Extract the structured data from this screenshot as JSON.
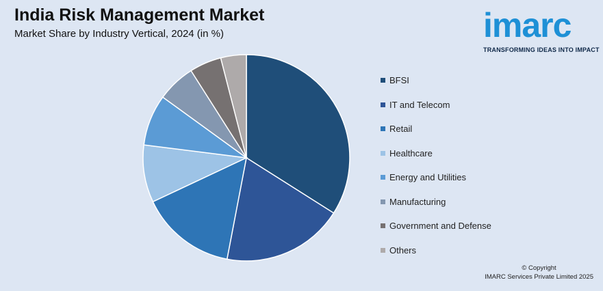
{
  "header": {
    "title": "India Risk Management Market",
    "subtitle": "Market Share by Industry Vertical, 2024 (in %)"
  },
  "logo": {
    "word": "imarc",
    "tagline": "TRANSFORMING IDEAS INTO IMPACT",
    "color": "#1e90d6"
  },
  "chart_data": {
    "type": "pie",
    "title": "India Risk Management Market",
    "subtitle": "Market Share by Industry Vertical, 2024 (in %)",
    "legend_position": "right",
    "categories": [
      "BFSI",
      "IT and Telecom",
      "Retail",
      "Healthcare",
      "Energy and Utilities",
      "Manufacturing",
      "Government and Defense",
      "Others"
    ],
    "values": [
      34,
      19,
      15,
      9,
      8,
      6,
      5,
      4
    ],
    "colors": [
      "#1f4e79",
      "#2e5597",
      "#2e75b6",
      "#9dc3e6",
      "#5b9bd5",
      "#8497b0",
      "#767171",
      "#aeaaaa"
    ]
  },
  "footer": {
    "copyright_line1": "© Copyright",
    "copyright_line2": "IMARC Services Private Limited 2025"
  }
}
